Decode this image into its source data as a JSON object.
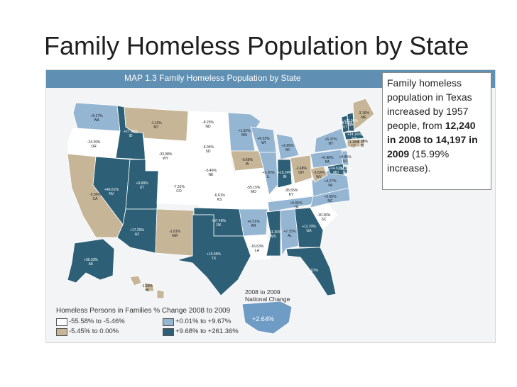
{
  "slide": {
    "title": "Family Homeless Population by State"
  },
  "map": {
    "header": "MAP 1.3  Family Homeless Population by State",
    "colors": {
      "decrease_large": "#ffffff",
      "decrease_small": "#c6b596",
      "increase_small": "#95b6d3",
      "increase_large": "#2d6077",
      "header_bg": "#5f8fb2"
    },
    "states": {
      "WA": "+9.17%",
      "OR": "-24.39%",
      "CA": "-5.09%",
      "NV": "+46.61%",
      "ID": "+27.05%",
      "MT": "-1.11%",
      "WY": "-33.98%",
      "UT": "+9.68%",
      "CO": "-7.31%",
      "AZ": "+17.25%",
      "NM": "-1.91%",
      "ND": "-8.25%",
      "SD": "-6.04%",
      "NE": "-5.46%",
      "KS": "-6.61%",
      "OK": "+37.46%",
      "TX": "+15.99%",
      "MN": "+1.62%",
      "IA": "-0.69%",
      "MO": "-55.15%",
      "AR": "+6.51%",
      "LA": "-16.63%",
      "WI": "+6.33%",
      "IL": "+3.20%",
      "MS": "+261.36%",
      "MI": "+2.65%",
      "IN": "+15.24%",
      "OH": "-2.48%",
      "KY": "-35.55%",
      "TN": "+0.65%",
      "AL": "+7.15%",
      "GA": "+11.70%",
      "FL": "+23.07%",
      "SC": "-30.36%",
      "NC": "+2.65%",
      "VA": "+4.27%",
      "WV": "-3.59%",
      "PA": "+0.98%",
      "NY": "+5.37%",
      "VT": "+58.53%",
      "NH": "+70.95%",
      "ME": "-3.16%",
      "MA": "+14.16%",
      "RI": "-2.98%",
      "CT": "-1.16%",
      "NJ": "+3.95%",
      "DE": "+14.35%",
      "MD": "+14.91%",
      "AK": "+30.33%",
      "HI": "-1.29%"
    },
    "national": {
      "label": "2008 to 2009\nNational Change",
      "value": "+2.64%"
    },
    "legend": {
      "title": "Homeless Persons in Families % Change 2008 to 2009",
      "items": [
        {
          "label": "-55.58% to -5.46%",
          "color": "#ffffff"
        },
        {
          "label": "+0.01% to +9.67%",
          "color": "#95b6d3"
        },
        {
          "label": "-5.45% to 0.00%",
          "color": "#c6b596"
        },
        {
          "label": "+9.68% to +261.36%",
          "color": "#2d6077"
        }
      ]
    }
  },
  "callout": {
    "line1": "Family homeless population in Texas increased by 1957 people, from",
    "bold": "12,240 in 2008 to 14,197 in 2009",
    "line2": "(15.99% increase)."
  }
}
